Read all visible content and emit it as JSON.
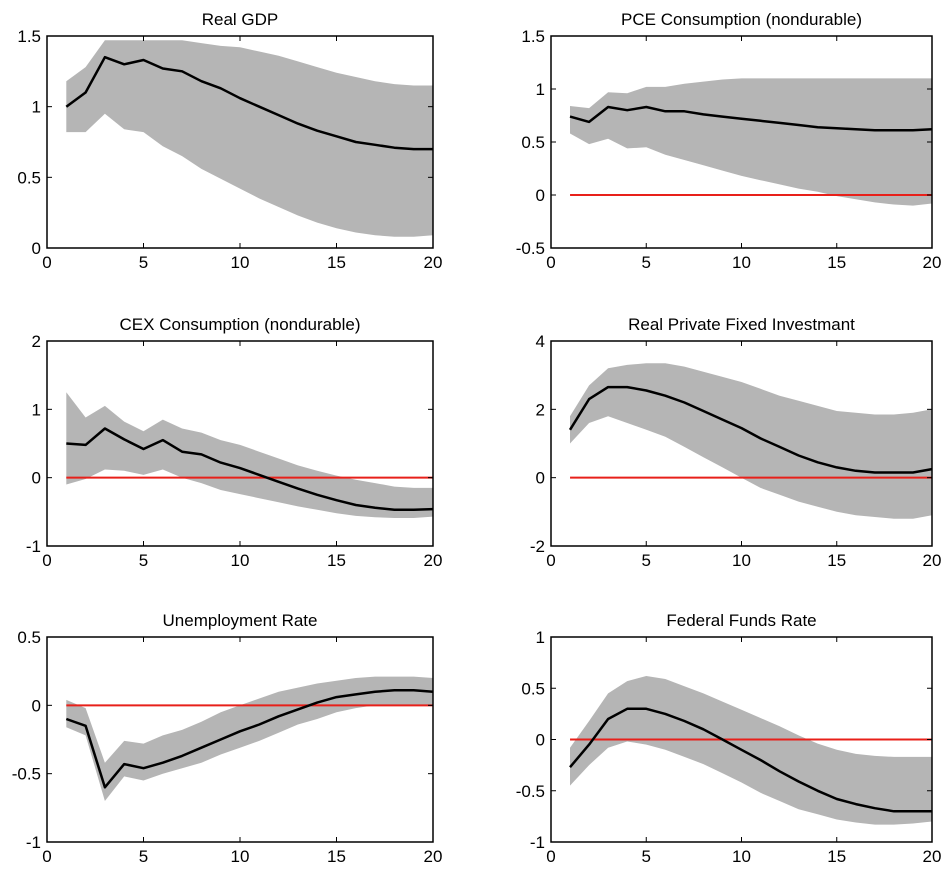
{
  "chart_data": [
    {
      "type": "area",
      "title": "Real GDP",
      "xlim": [
        0,
        20
      ],
      "ylim": [
        0,
        1.5
      ],
      "xticks": [
        "0",
        "5",
        "10",
        "15",
        "20"
      ],
      "yticks": [
        "0",
        "0.5",
        "1",
        "1.5"
      ],
      "x": [
        1,
        2,
        3,
        4,
        5,
        6,
        7,
        8,
        9,
        10,
        11,
        12,
        13,
        14,
        15,
        16,
        17,
        18,
        19,
        20
      ],
      "series": [
        {
          "role": "lower",
          "values": [
            0.82,
            0.82,
            0.95,
            0.84,
            0.82,
            0.72,
            0.65,
            0.56,
            0.49,
            0.42,
            0.35,
            0.29,
            0.23,
            0.18,
            0.14,
            0.11,
            0.09,
            0.08,
            0.08,
            0.09
          ]
        },
        {
          "role": "median",
          "values": [
            1.0,
            1.1,
            1.35,
            1.3,
            1.33,
            1.27,
            1.25,
            1.18,
            1.13,
            1.06,
            1.0,
            0.94,
            0.88,
            0.83,
            0.79,
            0.75,
            0.73,
            0.71,
            0.7,
            0.7
          ]
        },
        {
          "role": "upper",
          "values": [
            1.18,
            1.28,
            1.47,
            1.47,
            1.47,
            1.47,
            1.47,
            1.45,
            1.43,
            1.42,
            1.39,
            1.36,
            1.32,
            1.28,
            1.24,
            1.21,
            1.18,
            1.16,
            1.15,
            1.15
          ]
        }
      ],
      "zero_line": false
    },
    {
      "type": "area",
      "title": "PCE Consumption (nondurable)",
      "xlim": [
        0,
        20
      ],
      "ylim": [
        -0.5,
        1.5
      ],
      "xticks": [
        "0",
        "5",
        "10",
        "15",
        "20"
      ],
      "yticks": [
        "-0.5",
        "0",
        "0.5",
        "1",
        "1.5"
      ],
      "x": [
        1,
        2,
        3,
        4,
        5,
        6,
        7,
        8,
        9,
        10,
        11,
        12,
        13,
        14,
        15,
        16,
        17,
        18,
        19,
        20
      ],
      "series": [
        {
          "role": "lower",
          "values": [
            0.58,
            0.48,
            0.53,
            0.44,
            0.45,
            0.38,
            0.33,
            0.28,
            0.23,
            0.18,
            0.14,
            0.1,
            0.06,
            0.03,
            -0.01,
            -0.04,
            -0.07,
            -0.09,
            -0.1,
            -0.08
          ]
        },
        {
          "role": "median",
          "values": [
            0.74,
            0.69,
            0.83,
            0.8,
            0.83,
            0.79,
            0.79,
            0.76,
            0.74,
            0.72,
            0.7,
            0.68,
            0.66,
            0.64,
            0.63,
            0.62,
            0.61,
            0.61,
            0.61,
            0.62
          ]
        },
        {
          "role": "upper",
          "values": [
            0.84,
            0.82,
            0.97,
            0.96,
            1.02,
            1.02,
            1.05,
            1.07,
            1.09,
            1.1,
            1.1,
            1.1,
            1.1,
            1.1,
            1.1,
            1.1,
            1.1,
            1.1,
            1.1,
            1.1
          ]
        }
      ],
      "zero_line": true
    },
    {
      "type": "area",
      "title": "CEX Consumption (nondurable)",
      "xlim": [
        0,
        20
      ],
      "ylim": [
        -1,
        2
      ],
      "xticks": [
        "0",
        "5",
        "10",
        "15",
        "20"
      ],
      "yticks": [
        "-1",
        "0",
        "1",
        "2"
      ],
      "x": [
        1,
        2,
        3,
        4,
        5,
        6,
        7,
        8,
        9,
        10,
        11,
        12,
        13,
        14,
        15,
        16,
        17,
        18,
        19,
        20
      ],
      "series": [
        {
          "role": "lower",
          "values": [
            -0.1,
            -0.02,
            0.12,
            0.1,
            0.04,
            0.12,
            0.0,
            -0.08,
            -0.18,
            -0.24,
            -0.3,
            -0.36,
            -0.42,
            -0.47,
            -0.52,
            -0.56,
            -0.58,
            -0.59,
            -0.59,
            -0.57
          ]
        },
        {
          "role": "median",
          "values": [
            0.5,
            0.48,
            0.72,
            0.56,
            0.42,
            0.55,
            0.38,
            0.34,
            0.22,
            0.14,
            0.04,
            -0.06,
            -0.16,
            -0.25,
            -0.33,
            -0.4,
            -0.44,
            -0.47,
            -0.47,
            -0.46
          ]
        },
        {
          "role": "upper",
          "values": [
            1.25,
            0.88,
            1.05,
            0.82,
            0.68,
            0.85,
            0.72,
            0.66,
            0.55,
            0.48,
            0.38,
            0.28,
            0.18,
            0.1,
            0.03,
            -0.03,
            -0.08,
            -0.13,
            -0.15,
            -0.15
          ]
        }
      ],
      "zero_line": true
    },
    {
      "type": "area",
      "title": "Real Private Fixed Investmant",
      "xlim": [
        0,
        20
      ],
      "ylim": [
        -2,
        4
      ],
      "xticks": [
        "0",
        "5",
        "10",
        "15",
        "20"
      ],
      "yticks": [
        "-2",
        "0",
        "2",
        "4"
      ],
      "x": [
        1,
        2,
        3,
        4,
        5,
        6,
        7,
        8,
        9,
        10,
        11,
        12,
        13,
        14,
        15,
        16,
        17,
        18,
        19,
        20
      ],
      "series": [
        {
          "role": "lower",
          "values": [
            1.0,
            1.6,
            1.8,
            1.6,
            1.4,
            1.2,
            0.9,
            0.6,
            0.3,
            0.0,
            -0.3,
            -0.5,
            -0.7,
            -0.85,
            -1.0,
            -1.1,
            -1.15,
            -1.2,
            -1.2,
            -1.1
          ]
        },
        {
          "role": "median",
          "values": [
            1.4,
            2.3,
            2.65,
            2.65,
            2.55,
            2.4,
            2.2,
            1.95,
            1.7,
            1.45,
            1.15,
            0.9,
            0.65,
            0.45,
            0.3,
            0.2,
            0.15,
            0.15,
            0.15,
            0.25
          ]
        },
        {
          "role": "upper",
          "values": [
            1.8,
            2.7,
            3.2,
            3.3,
            3.35,
            3.35,
            3.25,
            3.1,
            2.95,
            2.8,
            2.6,
            2.4,
            2.25,
            2.1,
            1.95,
            1.9,
            1.85,
            1.85,
            1.9,
            2.0
          ]
        }
      ],
      "zero_line": true
    },
    {
      "type": "area",
      "title": "Unemployment Rate",
      "xlim": [
        0,
        20
      ],
      "ylim": [
        -1,
        0.5
      ],
      "xticks": [
        "0",
        "5",
        "10",
        "15",
        "20"
      ],
      "yticks": [
        "-1",
        "-0.5",
        "0",
        "0.5"
      ],
      "x": [
        1,
        2,
        3,
        4,
        5,
        6,
        7,
        8,
        9,
        10,
        11,
        12,
        13,
        14,
        15,
        16,
        17,
        18,
        19,
        20
      ],
      "series": [
        {
          "role": "lower",
          "values": [
            -0.16,
            -0.22,
            -0.7,
            -0.52,
            -0.55,
            -0.5,
            -0.46,
            -0.42,
            -0.36,
            -0.31,
            -0.26,
            -0.2,
            -0.14,
            -0.1,
            -0.05,
            -0.02,
            0.0,
            0.0,
            0.0,
            0.0
          ]
        },
        {
          "role": "median",
          "values": [
            -0.1,
            -0.15,
            -0.6,
            -0.43,
            -0.46,
            -0.42,
            -0.37,
            -0.31,
            -0.25,
            -0.19,
            -0.14,
            -0.08,
            -0.03,
            0.02,
            0.06,
            0.08,
            0.1,
            0.11,
            0.11,
            0.1
          ]
        },
        {
          "role": "upper",
          "values": [
            0.04,
            -0.02,
            -0.42,
            -0.26,
            -0.28,
            -0.22,
            -0.18,
            -0.12,
            -0.05,
            0.0,
            0.05,
            0.1,
            0.13,
            0.16,
            0.18,
            0.2,
            0.21,
            0.21,
            0.21,
            0.2
          ]
        }
      ],
      "zero_line": true
    },
    {
      "type": "area",
      "title": "Federal Funds Rate",
      "xlim": [
        0,
        20
      ],
      "ylim": [
        -1,
        1
      ],
      "xticks": [
        "0",
        "5",
        "10",
        "15",
        "20"
      ],
      "yticks": [
        "-1",
        "-0.5",
        "0",
        "0.5",
        "1"
      ],
      "x": [
        1,
        2,
        3,
        4,
        5,
        6,
        7,
        8,
        9,
        10,
        11,
        12,
        13,
        14,
        15,
        16,
        17,
        18,
        19,
        20
      ],
      "series": [
        {
          "role": "lower",
          "values": [
            -0.45,
            -0.25,
            -0.08,
            -0.02,
            -0.05,
            -0.1,
            -0.17,
            -0.24,
            -0.33,
            -0.42,
            -0.52,
            -0.6,
            -0.68,
            -0.73,
            -0.78,
            -0.81,
            -0.83,
            -0.83,
            -0.82,
            -0.8
          ]
        },
        {
          "role": "median",
          "values": [
            -0.27,
            -0.05,
            0.2,
            0.3,
            0.3,
            0.25,
            0.18,
            0.1,
            0.0,
            -0.1,
            -0.2,
            -0.31,
            -0.41,
            -0.5,
            -0.58,
            -0.63,
            -0.67,
            -0.7,
            -0.7,
            -0.7
          ]
        },
        {
          "role": "upper",
          "values": [
            -0.08,
            0.18,
            0.45,
            0.57,
            0.62,
            0.59,
            0.52,
            0.45,
            0.37,
            0.29,
            0.21,
            0.13,
            0.04,
            -0.04,
            -0.1,
            -0.14,
            -0.16,
            -0.17,
            -0.17,
            -0.17
          ]
        }
      ],
      "zero_line": true
    }
  ],
  "colors": {
    "band": "#b5b5b5",
    "median": "#000000",
    "zero_line": "#e8201a"
  }
}
